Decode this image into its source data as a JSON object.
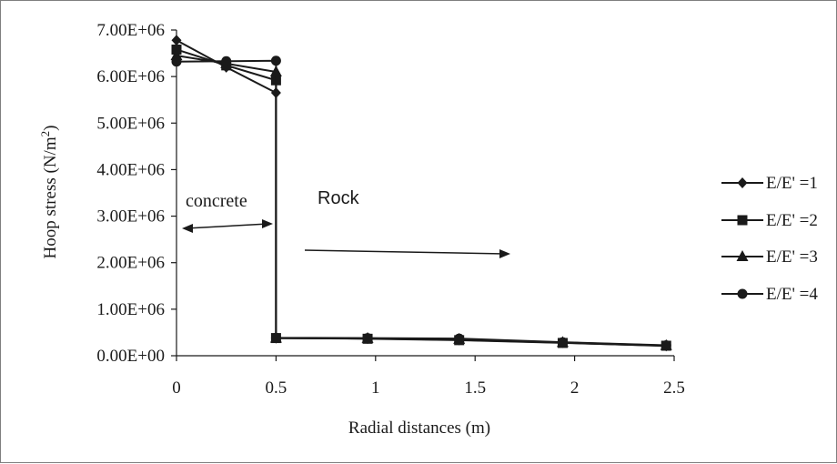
{
  "chart_data": {
    "type": "line",
    "title": "",
    "xlabel": "Radial distances (m)",
    "ylabel_main": "Hoop stress (N/m",
    "ylabel_sup": "2",
    "ylabel_close": ")",
    "xlim": [
      0,
      2.5
    ],
    "ylim": [
      0,
      7000000
    ],
    "x_ticks": [
      0,
      0.5,
      1,
      1.5,
      2,
      2.5
    ],
    "x_tick_labels": [
      "0",
      "0.5",
      "1",
      "1.5",
      "2",
      "2.5"
    ],
    "y_ticks": [
      0,
      1000000,
      2000000,
      3000000,
      4000000,
      5000000,
      6000000,
      7000000
    ],
    "y_tick_labels": [
      "0.00E+00",
      "1.00E+06",
      "2.00E+06",
      "3.00E+06",
      "4.00E+06",
      "5.00E+06",
      "6.00E+06",
      "7.00E+06"
    ],
    "grid": false,
    "legend_position": "right",
    "series_color": "#1a1a1a",
    "series": [
      {
        "name": "E/E' =1",
        "marker": "diamond",
        "points": [
          [
            0,
            6780000
          ],
          [
            0.25,
            6200000
          ],
          [
            0.5,
            5650000
          ],
          [
            0.5,
            380000
          ],
          [
            0.96,
            370000
          ],
          [
            1.42,
            340000
          ],
          [
            1.94,
            280000
          ],
          [
            2.46,
            210000
          ]
        ]
      },
      {
        "name": "E/E' =2",
        "marker": "square",
        "points": [
          [
            0,
            6580000
          ],
          [
            0.25,
            6240000
          ],
          [
            0.5,
            5920000
          ],
          [
            0.5,
            380000
          ],
          [
            0.96,
            365000
          ],
          [
            1.42,
            335000
          ],
          [
            1.94,
            275000
          ],
          [
            2.46,
            215000
          ]
        ]
      },
      {
        "name": "E/E' =3",
        "marker": "triangle",
        "points": [
          [
            0,
            6450000
          ],
          [
            0.25,
            6280000
          ],
          [
            0.5,
            6100000
          ],
          [
            0.5,
            380000
          ],
          [
            0.96,
            375000
          ],
          [
            1.42,
            355000
          ],
          [
            1.94,
            285000
          ],
          [
            2.46,
            220000
          ]
        ]
      },
      {
        "name": "E/E' =4",
        "marker": "circle",
        "points": [
          [
            0,
            6320000
          ],
          [
            0.25,
            6330000
          ],
          [
            0.5,
            6340000
          ],
          [
            0.5,
            385000
          ],
          [
            0.96,
            380000
          ],
          [
            1.42,
            370000
          ],
          [
            1.94,
            290000
          ],
          [
            2.46,
            225000
          ]
        ]
      }
    ],
    "annotations": {
      "concrete": "concrete",
      "rock": "Rock"
    }
  }
}
